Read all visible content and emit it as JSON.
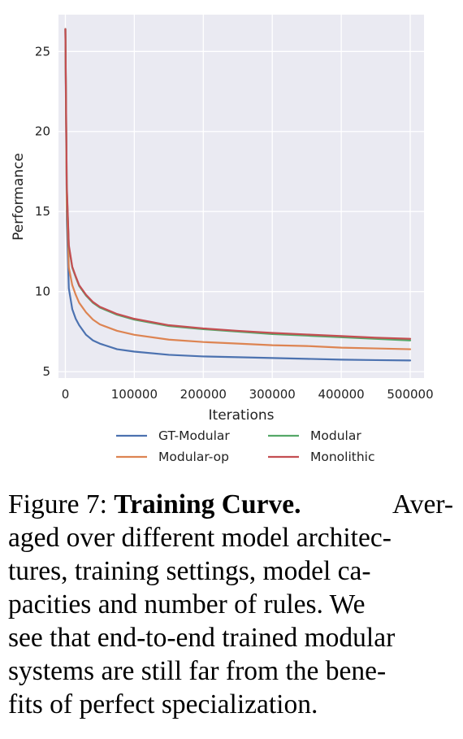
{
  "chart_data": {
    "type": "line",
    "xlabel": "Iterations",
    "ylabel": "Performance",
    "xlim": [
      -10000,
      520000
    ],
    "ylim": [
      4.6,
      27.3
    ],
    "xticks": [
      0,
      100000,
      200000,
      300000,
      400000,
      500000
    ],
    "xtick_labels": [
      "0",
      "100000",
      "200000",
      "300000",
      "400000",
      "500000"
    ],
    "yticks": [
      5,
      10,
      15,
      20,
      25
    ],
    "ytick_labels": [
      "5",
      "10",
      "15",
      "20",
      "25"
    ],
    "grid": true,
    "legend": "bottom-center",
    "series": [
      {
        "name": "GT-Modular",
        "color": "#4c72b0",
        "x": [
          0,
          2000,
          5000,
          10000,
          15000,
          20000,
          30000,
          40000,
          50000,
          75000,
          100000,
          150000,
          200000,
          250000,
          300000,
          350000,
          400000,
          450000,
          500000
        ],
        "y": [
          26.4,
          14.5,
          10.2,
          8.9,
          8.3,
          7.9,
          7.3,
          6.95,
          6.75,
          6.4,
          6.25,
          6.05,
          5.95,
          5.9,
          5.85,
          5.8,
          5.75,
          5.72,
          5.7
        ]
      },
      {
        "name": "Modular-op",
        "color": "#dd8452",
        "x": [
          0,
          2000,
          5000,
          10000,
          15000,
          20000,
          30000,
          40000,
          50000,
          75000,
          100000,
          150000,
          200000,
          250000,
          300000,
          350000,
          400000,
          450000,
          500000
        ],
        "y": [
          26.4,
          15.5,
          11.5,
          10.4,
          9.8,
          9.3,
          8.7,
          8.25,
          7.95,
          7.55,
          7.3,
          7.0,
          6.85,
          6.75,
          6.65,
          6.6,
          6.5,
          6.45,
          6.4
        ]
      },
      {
        "name": "Modular",
        "color": "#55a868",
        "x": [
          0,
          2000,
          5000,
          10000,
          15000,
          20000,
          30000,
          40000,
          50000,
          75000,
          100000,
          150000,
          200000,
          250000,
          300000,
          350000,
          400000,
          450000,
          500000
        ],
        "y": [
          26.4,
          16.5,
          12.8,
          11.5,
          10.9,
          10.35,
          9.75,
          9.3,
          9.0,
          8.55,
          8.25,
          7.85,
          7.65,
          7.5,
          7.35,
          7.25,
          7.15,
          7.05,
          6.95
        ]
      },
      {
        "name": "Monolithic",
        "color": "#c44e52",
        "x": [
          0,
          2000,
          5000,
          10000,
          15000,
          20000,
          30000,
          40000,
          50000,
          75000,
          100000,
          150000,
          200000,
          250000,
          300000,
          350000,
          400000,
          450000,
          500000
        ],
        "y": [
          26.4,
          16.7,
          12.9,
          11.55,
          10.95,
          10.4,
          9.8,
          9.35,
          9.05,
          8.6,
          8.3,
          7.9,
          7.7,
          7.55,
          7.42,
          7.32,
          7.22,
          7.12,
          7.05
        ]
      }
    ]
  },
  "caption": {
    "label": "Figure 7:",
    "title": "Training Curve.",
    "lines": [
      [
        "Aver-"
      ],
      [
        "aged over different model architec-"
      ],
      [
        "tures, training settings, model ca-"
      ],
      [
        "pacities and number of rules.  We"
      ],
      [
        "see that end-to-end trained modular"
      ],
      [
        "systems are still far from the bene-"
      ],
      [
        "fits of perfect specialization."
      ]
    ]
  }
}
